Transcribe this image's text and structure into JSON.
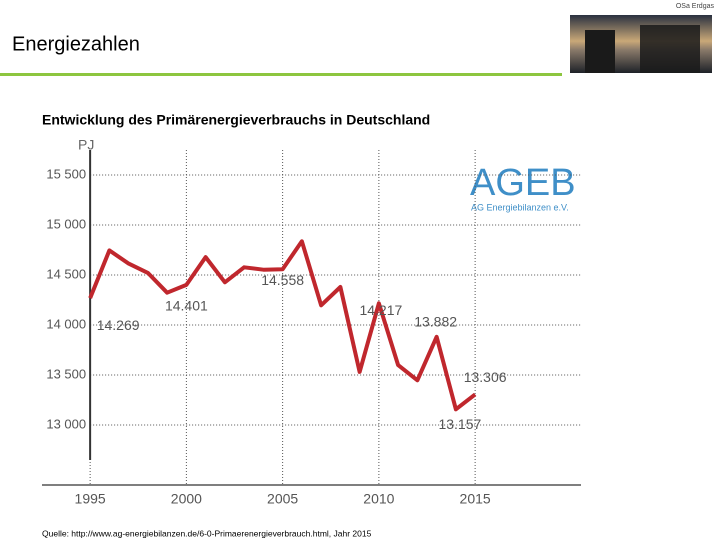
{
  "corner_text": "OSa Erdgas",
  "header": {
    "title": "Energiezahlen"
  },
  "logo": {
    "name": "AGEB",
    "subtitle": "AG Energiebilanzen e.V."
  },
  "source": "Quelle: http://www.ag-energiebilanzen.de/6-0-Primaerenergieverbrauch.html, Jahr 2015",
  "chart_data": {
    "type": "line",
    "title": "Entwicklung des Primärenergieverbrauchs in Deutschland",
    "y_label": "PJ",
    "x": [
      1995,
      1996,
      1997,
      1998,
      1999,
      2000,
      2001,
      2002,
      2003,
      2004,
      2005,
      2006,
      2007,
      2008,
      2009,
      2010,
      2011,
      2012,
      2013,
      2014,
      2015
    ],
    "series": [
      {
        "name": "Primärenergieverbrauch",
        "color": "#c0272d",
        "values": [
          14269,
          14746,
          14614,
          14521,
          14323,
          14401,
          14679,
          14427,
          14577,
          14553,
          14558,
          14837,
          14197,
          14380,
          13531,
          14217,
          13599,
          13447,
          13882,
          13157,
          13306
        ],
        "value_labels": [
          "14.269",
          null,
          null,
          null,
          null,
          "14.401",
          null,
          null,
          null,
          null,
          "14.558",
          null,
          null,
          null,
          null,
          "14.217",
          null,
          null,
          "13.882",
          "13.157",
          "13.306"
        ]
      }
    ],
    "xlim": [
      1992.5,
      2020.5
    ],
    "xticks": [
      1995,
      2000,
      2005,
      2010,
      2015
    ],
    "ylim": [
      12650,
      15750
    ],
    "yticks": [
      {
        "value": 13000,
        "label": "13 000"
      },
      {
        "value": 13500,
        "label": "13 500"
      },
      {
        "value": 14000,
        "label": "14 000"
      },
      {
        "value": 14500,
        "label": "14 500"
      },
      {
        "value": 15000,
        "label": "15 000"
      },
      {
        "value": 15500,
        "label": "15 500"
      }
    ],
    "grid": true
  }
}
